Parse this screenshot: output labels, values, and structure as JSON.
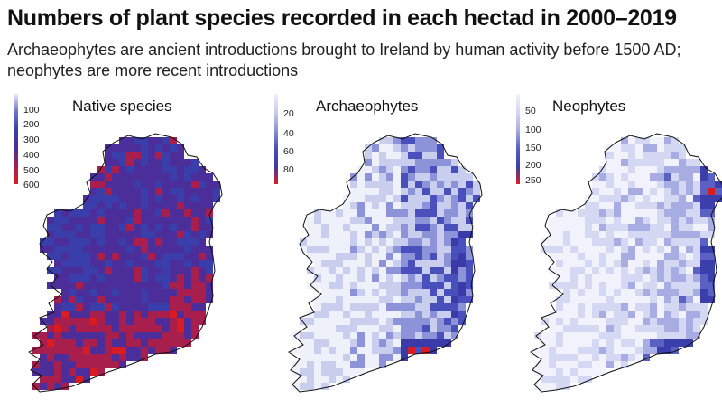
{
  "title": "Numbers of plant species recorded in each hectad in 2000–2019",
  "subtitle": "Archaeophytes are ancient introductions brought to Ireland by human activity before 1500 AD; neophytes are more recent introductions",
  "panels": [
    {
      "name": "Native species",
      "legend": [
        "100",
        "200",
        "300",
        "400",
        "500",
        "600"
      ],
      "colors": [
        "#e9ebf7",
        "#6a72c8",
        "#3a3eab",
        "#4b2e9a",
        "#a81f4e",
        "#d81c22"
      ],
      "pattern": "native"
    },
    {
      "name": "Archaeophytes",
      "legend": [
        "20",
        "40",
        "60",
        "80"
      ],
      "colors": [
        "#eef0fa",
        "#c9cdee",
        "#8c93d8",
        "#4a50bb",
        "#3a3aa8",
        "#d81c22"
      ],
      "pattern": "archaeo"
    },
    {
      "name": "Neophytes",
      "legend": [
        "50",
        "100",
        "150",
        "200",
        "250"
      ],
      "colors": [
        "#f1f2fb",
        "#d5d8f2",
        "#a7ade2",
        "#5a61c2",
        "#3b3fab",
        "#d81c22"
      ],
      "pattern": "neo"
    }
  ]
}
